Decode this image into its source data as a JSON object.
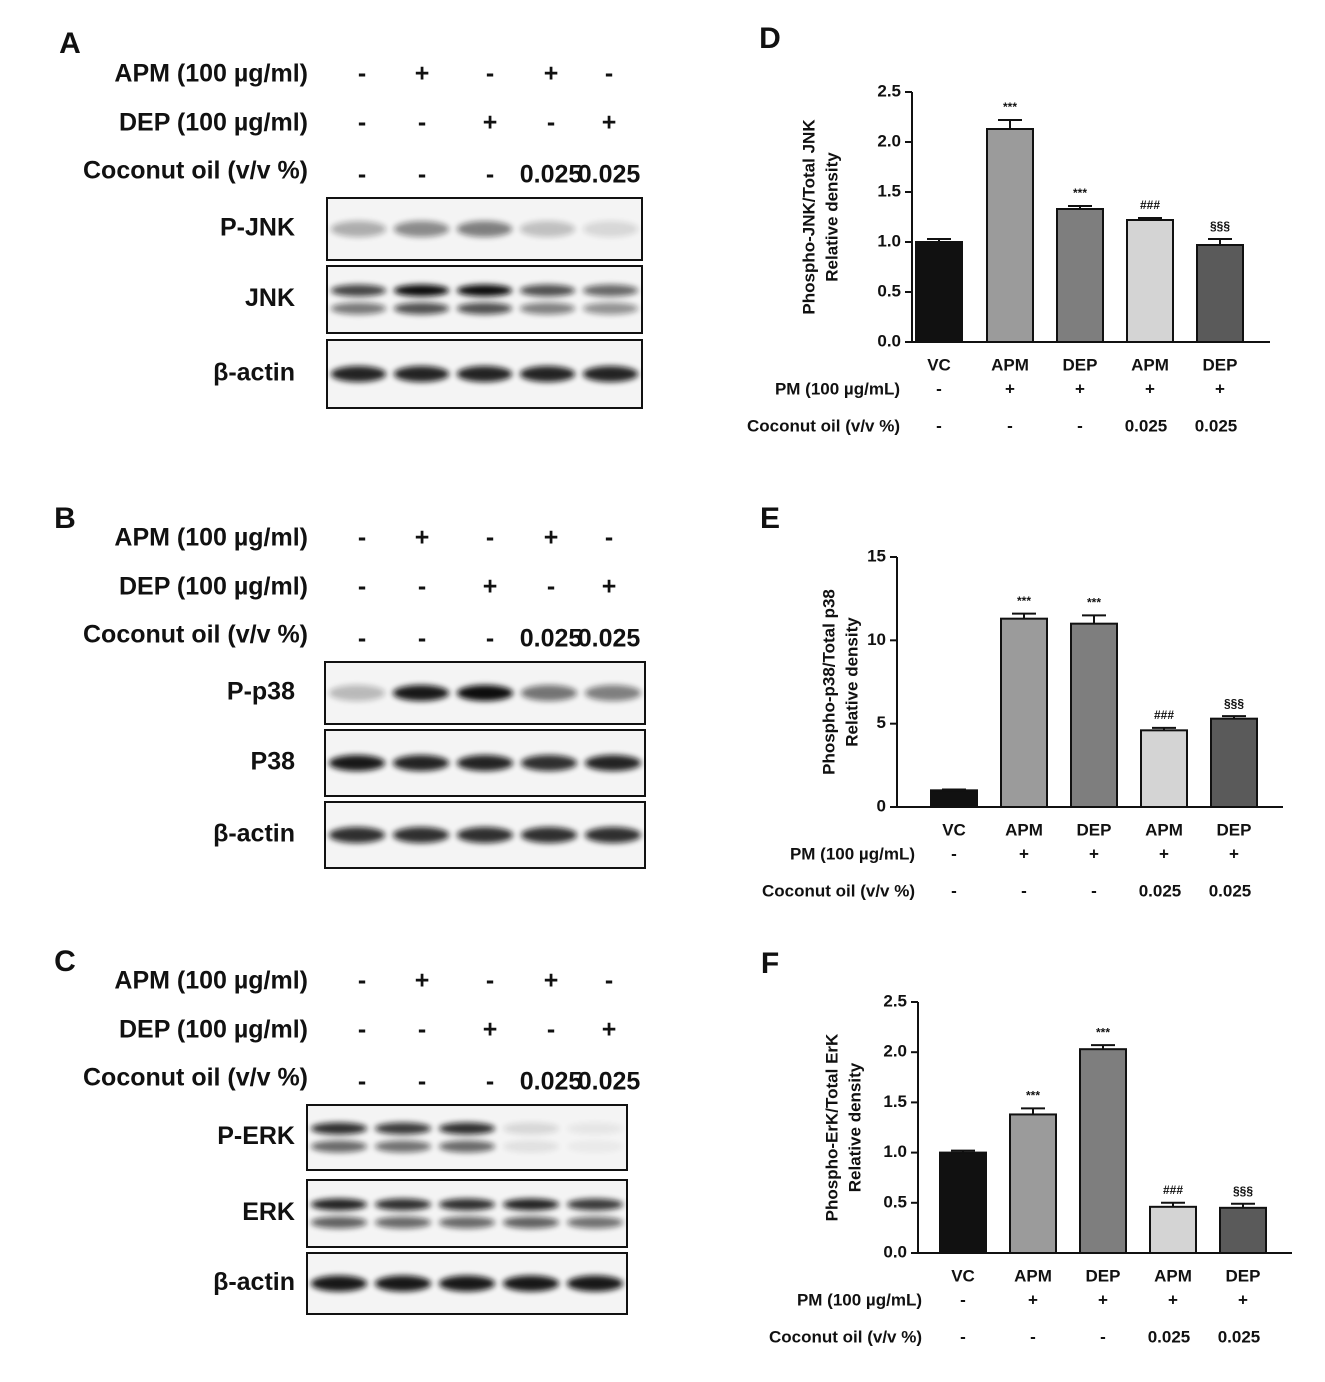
{
  "blots": [
    {
      "label": "A",
      "conditions": [
        {
          "name": "APM (100 µg/ml)",
          "values": [
            "-",
            "+",
            "-",
            "+",
            "-"
          ]
        },
        {
          "name": "DEP (100 µg/ml)",
          "values": [
            "-",
            "-",
            "+",
            "-",
            "+"
          ]
        },
        {
          "name": "Coconut oil  (v/v %)",
          "values": [
            "-",
            "-",
            "-",
            "0.025",
            "0.025"
          ]
        }
      ],
      "bands": [
        "P-JNK",
        "JNK",
        "β-actin"
      ]
    },
    {
      "label": "B",
      "conditions": [
        {
          "name": "APM (100 µg/ml)",
          "values": [
            "-",
            "+",
            "-",
            "+",
            "-"
          ]
        },
        {
          "name": "DEP (100 µg/ml)",
          "values": [
            "-",
            "-",
            "+",
            "-",
            "+"
          ]
        },
        {
          "name": "Coconut oil  (v/v %)",
          "values": [
            "-",
            "-",
            "-",
            "0.025",
            "0.025"
          ]
        }
      ],
      "bands": [
        "P-p38",
        "P38",
        "β-actin"
      ]
    },
    {
      "label": "C",
      "conditions": [
        {
          "name": "APM (100 µg/ml)",
          "values": [
            "-",
            "+",
            "-",
            "+",
            "-"
          ]
        },
        {
          "name": "DEP (100 µg/ml)",
          "values": [
            "-",
            "-",
            "+",
            "-",
            "+"
          ]
        },
        {
          "name": "Coconut oil  (v/v %)",
          "values": [
            "-",
            "-",
            "-",
            "0.025",
            "0.025"
          ]
        }
      ],
      "bands": [
        "P-ERK",
        "ERK",
        "β-actin"
      ]
    }
  ],
  "chart_data": [
    {
      "type": "bar",
      "panel": "D",
      "ylabel": [
        "Phospho-JNK/Total JNK",
        "Relative density"
      ],
      "categories": [
        "VC",
        "APM",
        "DEP",
        "APM",
        "DEP"
      ],
      "values": [
        1.0,
        2.13,
        1.33,
        1.22,
        0.97
      ],
      "errors": [
        0.03,
        0.09,
        0.03,
        0.02,
        0.06
      ],
      "annotations": [
        null,
        "***",
        "***",
        "###",
        "§§§"
      ],
      "colors": [
        "#111111",
        "#9b9b9b",
        "#7e7e7e",
        "#d4d4d4",
        "#5a5a5a"
      ],
      "ylim": [
        0,
        2.5
      ],
      "yticks": [
        {
          "value": 0,
          "label": "0.0"
        },
        {
          "value": 0.5,
          "label": "0.5"
        },
        {
          "value": 1,
          "label": "1.0"
        },
        {
          "value": 1.5,
          "label": "1.5"
        },
        {
          "value": 2,
          "label": "2.0"
        },
        {
          "value": 2.5,
          "label": "2.5"
        }
      ],
      "rows": [
        {
          "name": "PM (100 µg/mL)",
          "values": [
            "-",
            "+",
            "+",
            "+",
            "+"
          ]
        },
        {
          "name": "Coconut oil (v/v %)",
          "values": [
            "-",
            "-",
            "-",
            "0.025",
            "0.025"
          ]
        }
      ]
    },
    {
      "type": "bar",
      "panel": "E",
      "ylabel": [
        "Phospho-p38/Total p38",
        "Relative density"
      ],
      "categories": [
        "VC",
        "APM",
        "DEP",
        "APM",
        "DEP"
      ],
      "values": [
        1.0,
        11.3,
        11.0,
        4.6,
        5.3
      ],
      "errors": [
        0.05,
        0.3,
        0.5,
        0.15,
        0.15
      ],
      "annotations": [
        null,
        "***",
        "***",
        "###",
        "§§§"
      ],
      "colors": [
        "#111111",
        "#9b9b9b",
        "#7e7e7e",
        "#d4d4d4",
        "#5a5a5a"
      ],
      "ylim": [
        0,
        15
      ],
      "yticks": [
        0,
        5,
        10,
        15
      ],
      "rows": [
        {
          "name": "PM (100 µg/mL)",
          "values": [
            "-",
            "+",
            "+",
            "+",
            "+"
          ]
        },
        {
          "name": "Coconut oil (v/v %)",
          "values": [
            "-",
            "-",
            "-",
            "0.025",
            "0.025"
          ]
        }
      ]
    },
    {
      "type": "bar",
      "panel": "F",
      "ylabel": [
        "Phospho-ErK/Total ErK",
        "Relative density"
      ],
      "categories": [
        "VC",
        "APM",
        "DEP",
        "APM",
        "DEP"
      ],
      "values": [
        1.0,
        1.38,
        2.03,
        0.46,
        0.45
      ],
      "errors": [
        0.02,
        0.06,
        0.04,
        0.04,
        0.04
      ],
      "annotations": [
        null,
        "***",
        "***",
        "###",
        "§§§"
      ],
      "colors": [
        "#111111",
        "#9b9b9b",
        "#7e7e7e",
        "#d4d4d4",
        "#5a5a5a"
      ],
      "ylim": [
        0,
        2.5
      ],
      "yticks": [
        {
          "value": 0,
          "label": "0.0"
        },
        {
          "value": 0.5,
          "label": "0.5"
        },
        {
          "value": 1,
          "label": "1.0"
        },
        {
          "value": 1.5,
          "label": "1.5"
        },
        {
          "value": 2,
          "label": "2.0"
        },
        {
          "value": 2.5,
          "label": "2.5"
        }
      ],
      "rows": [
        {
          "name": "PM (100 µg/mL)",
          "values": [
            "-",
            "+",
            "+",
            "+",
            "+"
          ]
        },
        {
          "name": "Coconut oil (v/v %)",
          "values": [
            "-",
            "-",
            "-",
            "0.025",
            "0.025"
          ]
        }
      ]
    }
  ]
}
